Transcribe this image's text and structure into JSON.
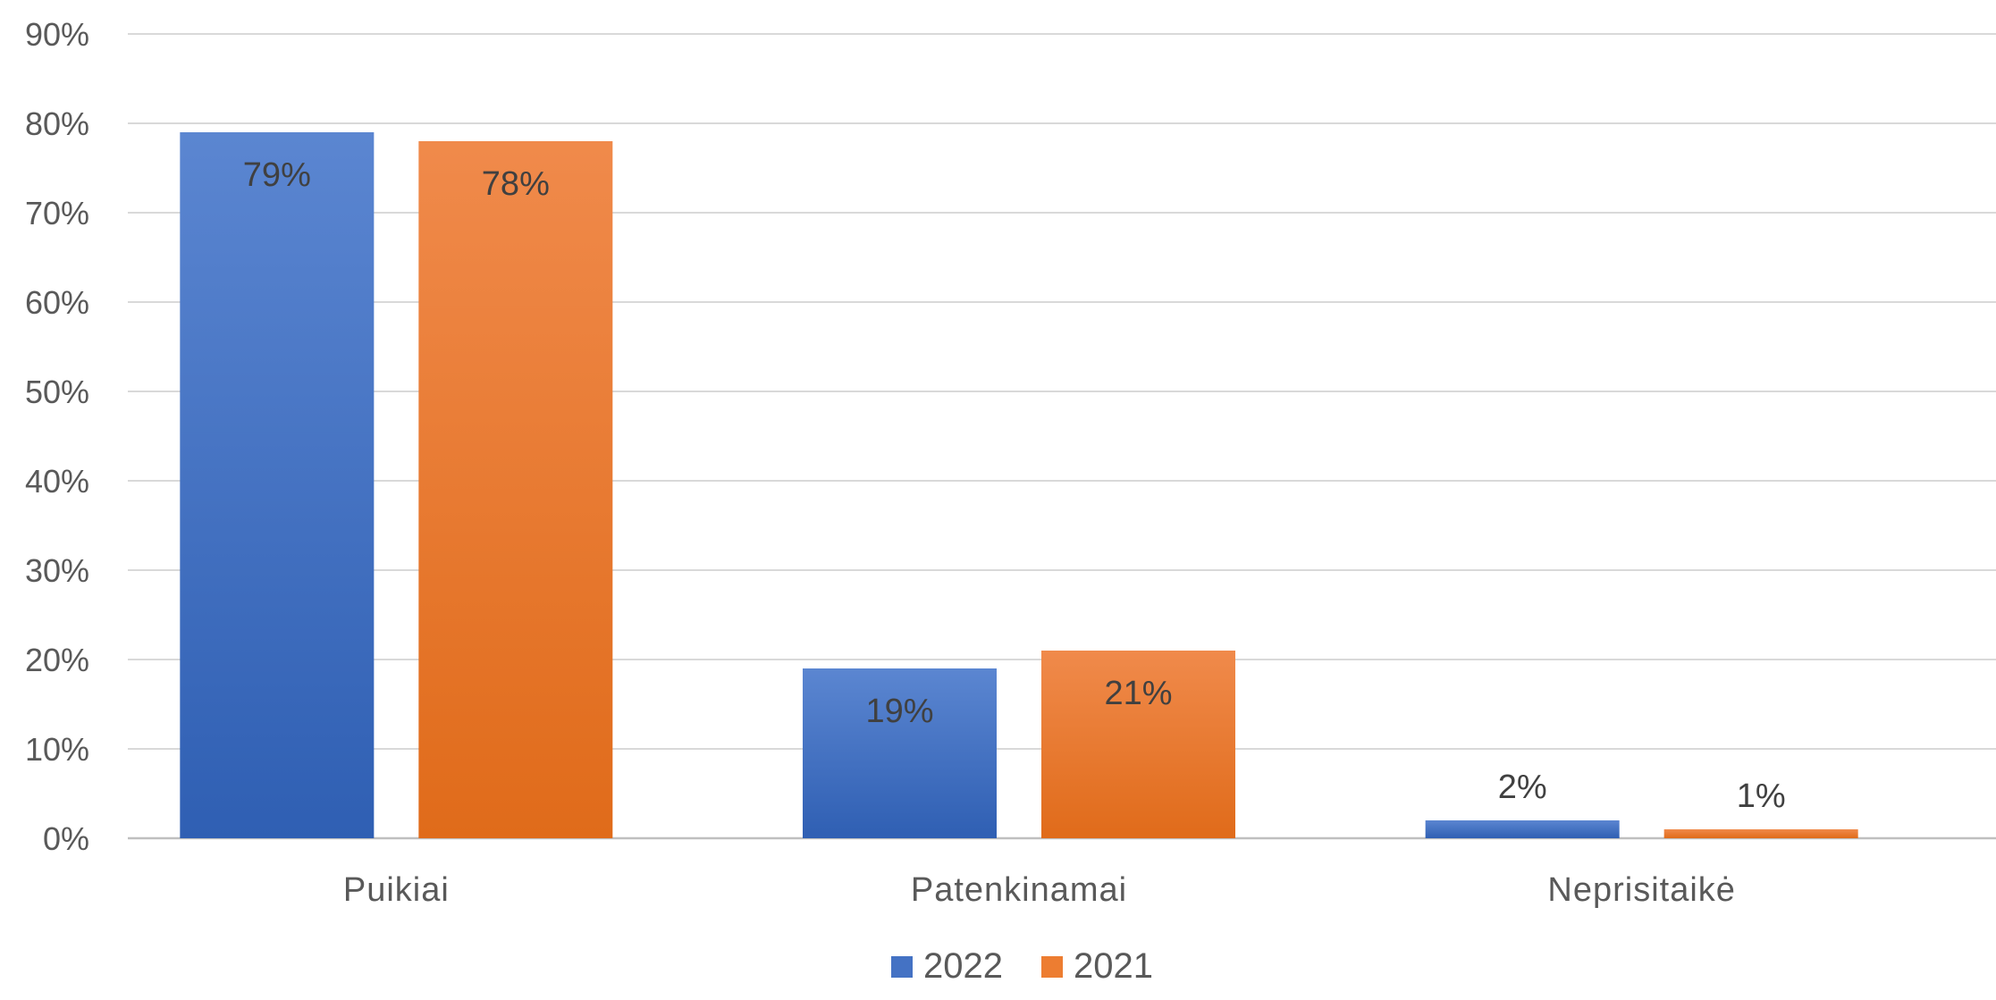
{
  "chart_data": {
    "type": "bar",
    "title": "",
    "xlabel": "",
    "ylabel": "",
    "categories": [
      "Puikiai",
      "Patenkinamai",
      "Neprisitaikė"
    ],
    "series": [
      {
        "name": "2022",
        "values": [
          79,
          19,
          2
        ],
        "labels": [
          "79%",
          "19%",
          "2%"
        ],
        "color": "#4472C4"
      },
      {
        "name": "2021",
        "values": [
          78,
          21,
          1
        ],
        "labels": [
          "78%",
          "21%",
          "1%"
        ],
        "color": "#ED7D31"
      }
    ],
    "ylim": [
      0,
      90
    ],
    "yticks": [
      0,
      10,
      20,
      30,
      40,
      50,
      60,
      70,
      80,
      90
    ],
    "ytick_labels": [
      "0%",
      "10%",
      "20%",
      "30%",
      "40%",
      "50%",
      "60%",
      "70%",
      "80%",
      "90%"
    ],
    "grid": true,
    "legend_position": "bottom"
  }
}
